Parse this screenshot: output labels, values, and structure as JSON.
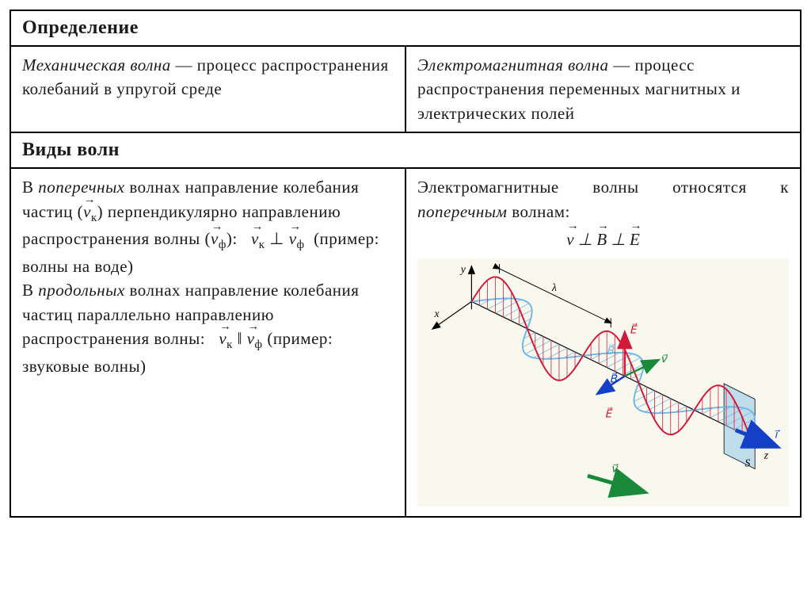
{
  "headers": {
    "definition": "Определение",
    "wave_types": "Виды волн"
  },
  "row1": {
    "left_html": "<em>Механическая волна</em> — процесс распространения колебаний в упругой среде",
    "right_html": "<em>Электромагнитная волна</em> — процесс распространения переменных магнитных и электрических полей"
  },
  "row2": {
    "left_html": "В <em>поперечных</em> волнах направление колебания частиц (<span class=\"vec\">v</span><sub>к</sub>) перпендикулярно направлению распространения волны (<span class=\"vec\">v</span><sub>ф</sub>):&nbsp;&nbsp; <span class=\"vec\">v</span><sub>к</sub> ⊥ <span class=\"vec\">v</span><sub>ф</sub> &nbsp;(пример: волны на воде)<br>В <em>продольных</em> волнах направление колебания частиц параллельно направлению распространения волны:&nbsp;&nbsp; <span class=\"vec\">v</span><sub>к</sub> ‖ <span class=\"vec\">v</span><sub>ф</sub> (пример: звуковые волны)",
    "right_intro_html": "Электромагнитные волны относятся к <em>поперечным</em> волнам:",
    "right_formula_html": "<span class=\"vec\">v</span> ⊥ <span class=\"vec\">B</span> ⊥ <span class=\"vec\">E</span>"
  },
  "diagram": {
    "type": "em-wave-3d",
    "background": "#f9f8ee",
    "axis_color": "#000000",
    "E_wave_color": "#d11a3a",
    "B_wave_color": "#6fb8e6",
    "v_arrow_color": "#1a8a3a",
    "i_arrow_color": "#1440c8",
    "plane_fill": "#8fc4e8",
    "lambda_label": "λ",
    "labels": {
      "x": "x",
      "y": "y",
      "z": "z",
      "E": "E",
      "B": "B",
      "v": "v",
      "i": "i",
      "S": "S"
    },
    "wave_cycles": 2.5,
    "font_family": "Georgia, serif",
    "label_fontsize": 14
  }
}
